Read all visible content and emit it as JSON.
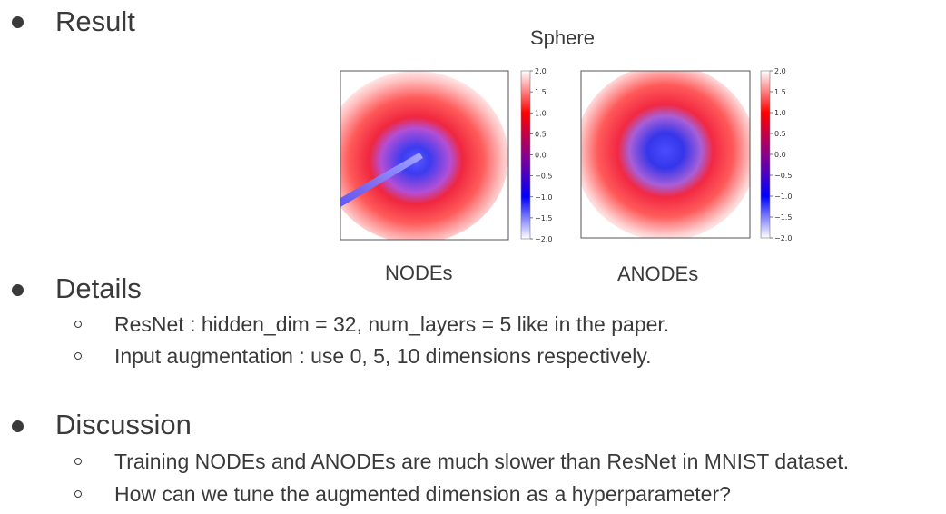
{
  "sections": {
    "result": {
      "title": "Result"
    },
    "details": {
      "title": "Details",
      "items": [
        "ResNet : hidden_dim = 32, num_layers = 5 like in the paper.",
        "Input augmentation : use 0, 5, 10 dimensions respectively."
      ]
    },
    "discussion": {
      "title": "Discussion",
      "items": [
        "Training NODEs and ANODEs are much slower than ResNet in MNIST dataset.",
        "How can we tune the augmented dimension as a hyperparameter?"
      ]
    }
  },
  "figure": {
    "title": "Sphere",
    "panels": [
      {
        "caption": "NODEs"
      },
      {
        "caption": "ANODEs"
      }
    ],
    "colorbar": {
      "ticks": [
        "2.0",
        "1.5",
        "1.0",
        "0.5",
        "0.0",
        "−0.5",
        "−1.0",
        "−1.5",
        "−2.0"
      ],
      "colors": {
        "high": "#ff0000",
        "mid": "#8a008a",
        "low": "#0000ff"
      }
    }
  }
}
